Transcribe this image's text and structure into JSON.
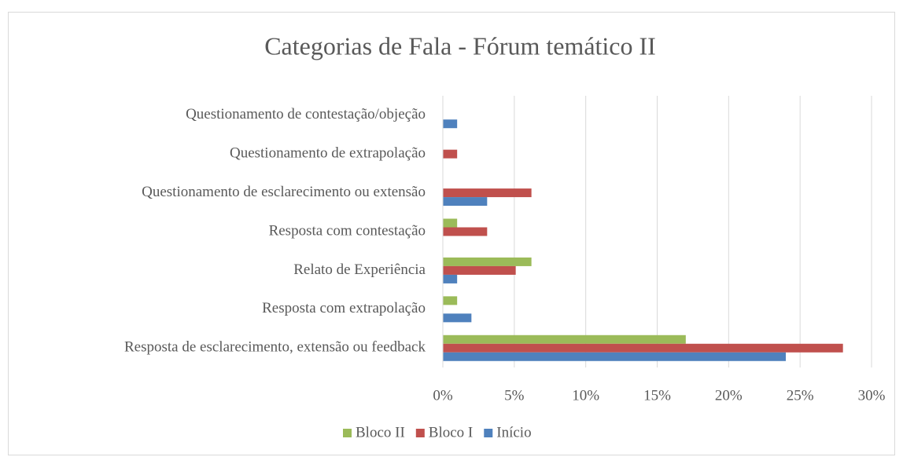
{
  "chart_data": {
    "type": "hbar",
    "title": "Categorias de Fala - Fórum temático II",
    "categories": [
      "Questionamento de contestação/objeção",
      "Questionamento de extrapolação",
      "Questionamento de esclarecimento ou extensão",
      "Resposta com contestação",
      "Relato de Experiência",
      "Resposta com extrapolação",
      "Resposta de esclarecimento, extensão ou feedback"
    ],
    "series": [
      {
        "name": "Bloco II",
        "color": "#9bbb59",
        "values": [
          0,
          0,
          0,
          1.0,
          6.2,
          1.0,
          17.0
        ]
      },
      {
        "name": "Bloco I",
        "color": "#c0504d",
        "values": [
          0,
          1.0,
          6.2,
          3.1,
          5.1,
          0,
          28.0
        ]
      },
      {
        "name": "Início",
        "color": "#4f81bd",
        "values": [
          1.0,
          0,
          3.1,
          0,
          1.0,
          2.0,
          24.0
        ]
      }
    ],
    "xlim": [
      0,
      30
    ],
    "xticks": [
      {
        "value": 0,
        "label": "0%"
      },
      {
        "value": 5,
        "label": "5%"
      },
      {
        "value": 10,
        "label": "10%"
      },
      {
        "value": 15,
        "label": "15%"
      },
      {
        "value": 20,
        "label": "20%"
      },
      {
        "value": 25,
        "label": "25%"
      },
      {
        "value": 30,
        "label": "30%"
      }
    ],
    "grid": true,
    "legend": "bottom"
  }
}
